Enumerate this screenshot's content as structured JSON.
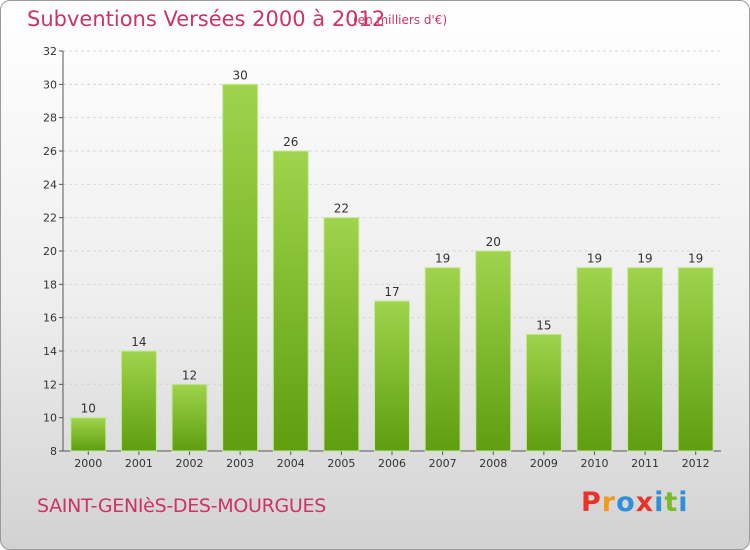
{
  "title": "Subventions Versées 2000 à 2012",
  "unit_note": "(en milliers d'€)",
  "commune": "SAINT-GENIèS-DES-MOURGUES",
  "logo_text": "Proxiti",
  "colors": {
    "accent": "#cc3366",
    "bar_light": "#9fd44c",
    "bar_dark": "#5e9e0f",
    "logo": [
      "#e8332a",
      "#f39a1e",
      "#2f8fd8",
      "#e8332a",
      "#2f8fd8",
      "#7ab927",
      "#2f8fd8"
    ]
  },
  "chart_data": {
    "type": "bar",
    "title": "Subventions Versées 2000 à 2012",
    "subtitle": "(en milliers d'€)",
    "categories": [
      "2000",
      "2001",
      "2002",
      "2003",
      "2004",
      "2005",
      "2006",
      "2007",
      "2008",
      "2009",
      "2010",
      "2011",
      "2012"
    ],
    "values": [
      10,
      14,
      12,
      30,
      26,
      22,
      17,
      19,
      20,
      15,
      19,
      19,
      19
    ],
    "ylim": [
      8,
      32
    ],
    "yticks": [
      8,
      10,
      12,
      14,
      16,
      18,
      20,
      22,
      24,
      26,
      28,
      30,
      32
    ],
    "xlabel": "",
    "ylabel": "",
    "grid": true,
    "data_labels": true
  }
}
